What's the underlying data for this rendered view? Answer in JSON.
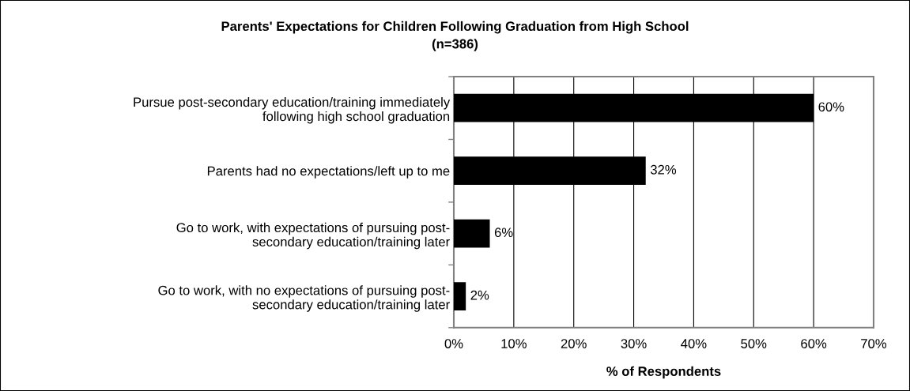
{
  "chart_data": {
    "type": "bar",
    "orientation": "horizontal",
    "title": "Parents' Expectations for Children Following Graduation from High School",
    "subtitle": "(n=386)",
    "xlabel": "% of Respondents",
    "categories": [
      "Pursue post-secondary education/training immediately\nfollowing high school graduation",
      "Parents had no expectations/left up to me",
      "Go to work, with expectations of pursuing post-\nsecondary education/training later",
      "Go to work, with no expectations of pursuing post-\nsecondary education/training later"
    ],
    "values": [
      60,
      32,
      6,
      2
    ],
    "value_labels": [
      "60%",
      "32%",
      "6%",
      "2%"
    ],
    "color": "#000000",
    "xlim": [
      0,
      70
    ],
    "xticks": [
      {
        "value": 0,
        "label": "0%"
      },
      {
        "value": 10,
        "label": "10%"
      },
      {
        "value": 20,
        "label": "20%"
      },
      {
        "value": 30,
        "label": "30%"
      },
      {
        "value": 40,
        "label": "40%"
      },
      {
        "value": 50,
        "label": "50%"
      },
      {
        "value": 60,
        "label": "60%"
      },
      {
        "value": 70,
        "label": "70%"
      }
    ],
    "grid": "x",
    "legend": false
  }
}
